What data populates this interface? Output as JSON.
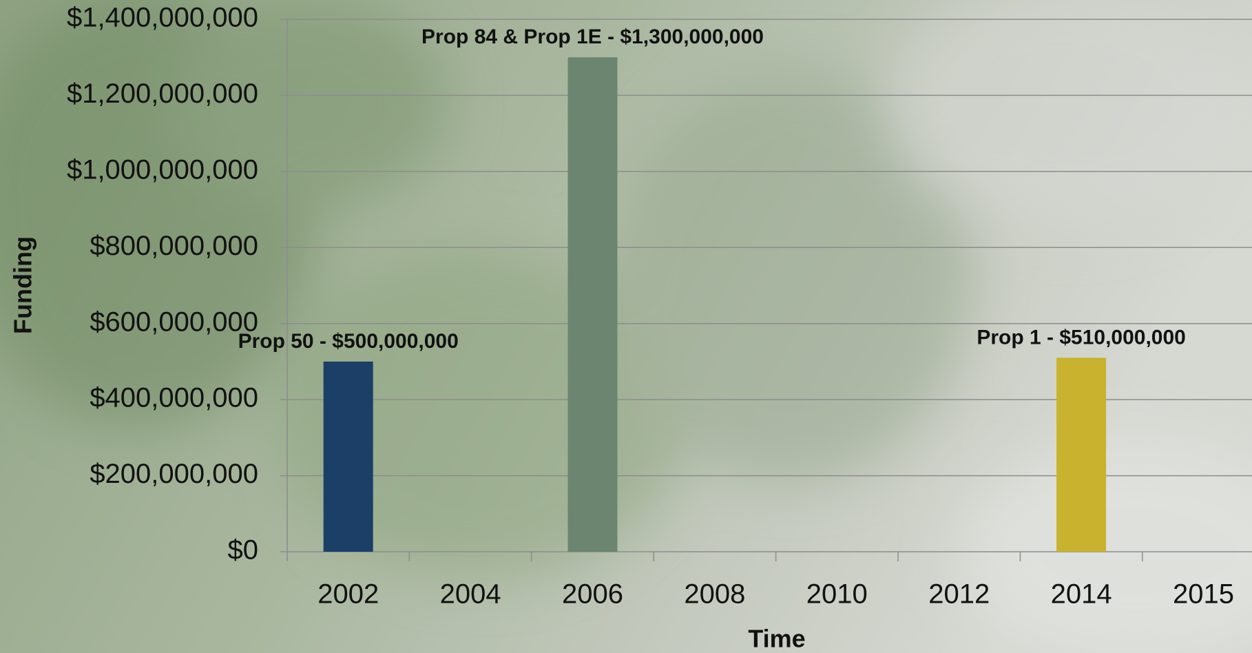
{
  "chart_data": {
    "type": "bar",
    "categories": [
      "2002",
      "2004",
      "2006",
      "2008",
      "2010",
      "2012",
      "2014",
      "2015"
    ],
    "values": [
      500000000,
      null,
      1300000000,
      null,
      null,
      null,
      510000000,
      null
    ],
    "value_labels": [
      "Prop 50 - $500,000,000",
      null,
      "Prop 84 & Prop 1E - $1,300,000,000",
      null,
      null,
      null,
      "Prop 1 - $510,000,000",
      null
    ],
    "colors": [
      "#1b3f66",
      null,
      "#6b8570",
      null,
      null,
      null,
      "#c8b22e",
      null
    ],
    "x_label": "Time",
    "y_label": "Funding",
    "ylim": [
      0,
      1400000000
    ],
    "yticks": [
      {
        "value": 0,
        "label": "$0"
      },
      {
        "value": 200000000,
        "label": "$200,000,000"
      },
      {
        "value": 400000000,
        "label": "$400,000,000"
      },
      {
        "value": 600000000,
        "label": "$600,000,000"
      },
      {
        "value": 800000000,
        "label": "$800,000,000"
      },
      {
        "value": 1000000000,
        "label": "$1,000,000,000"
      },
      {
        "value": 1200000000,
        "label": "$1,200,000,000"
      },
      {
        "value": 1400000000,
        "label": "$1,400,000,000"
      }
    ],
    "grid": true
  }
}
